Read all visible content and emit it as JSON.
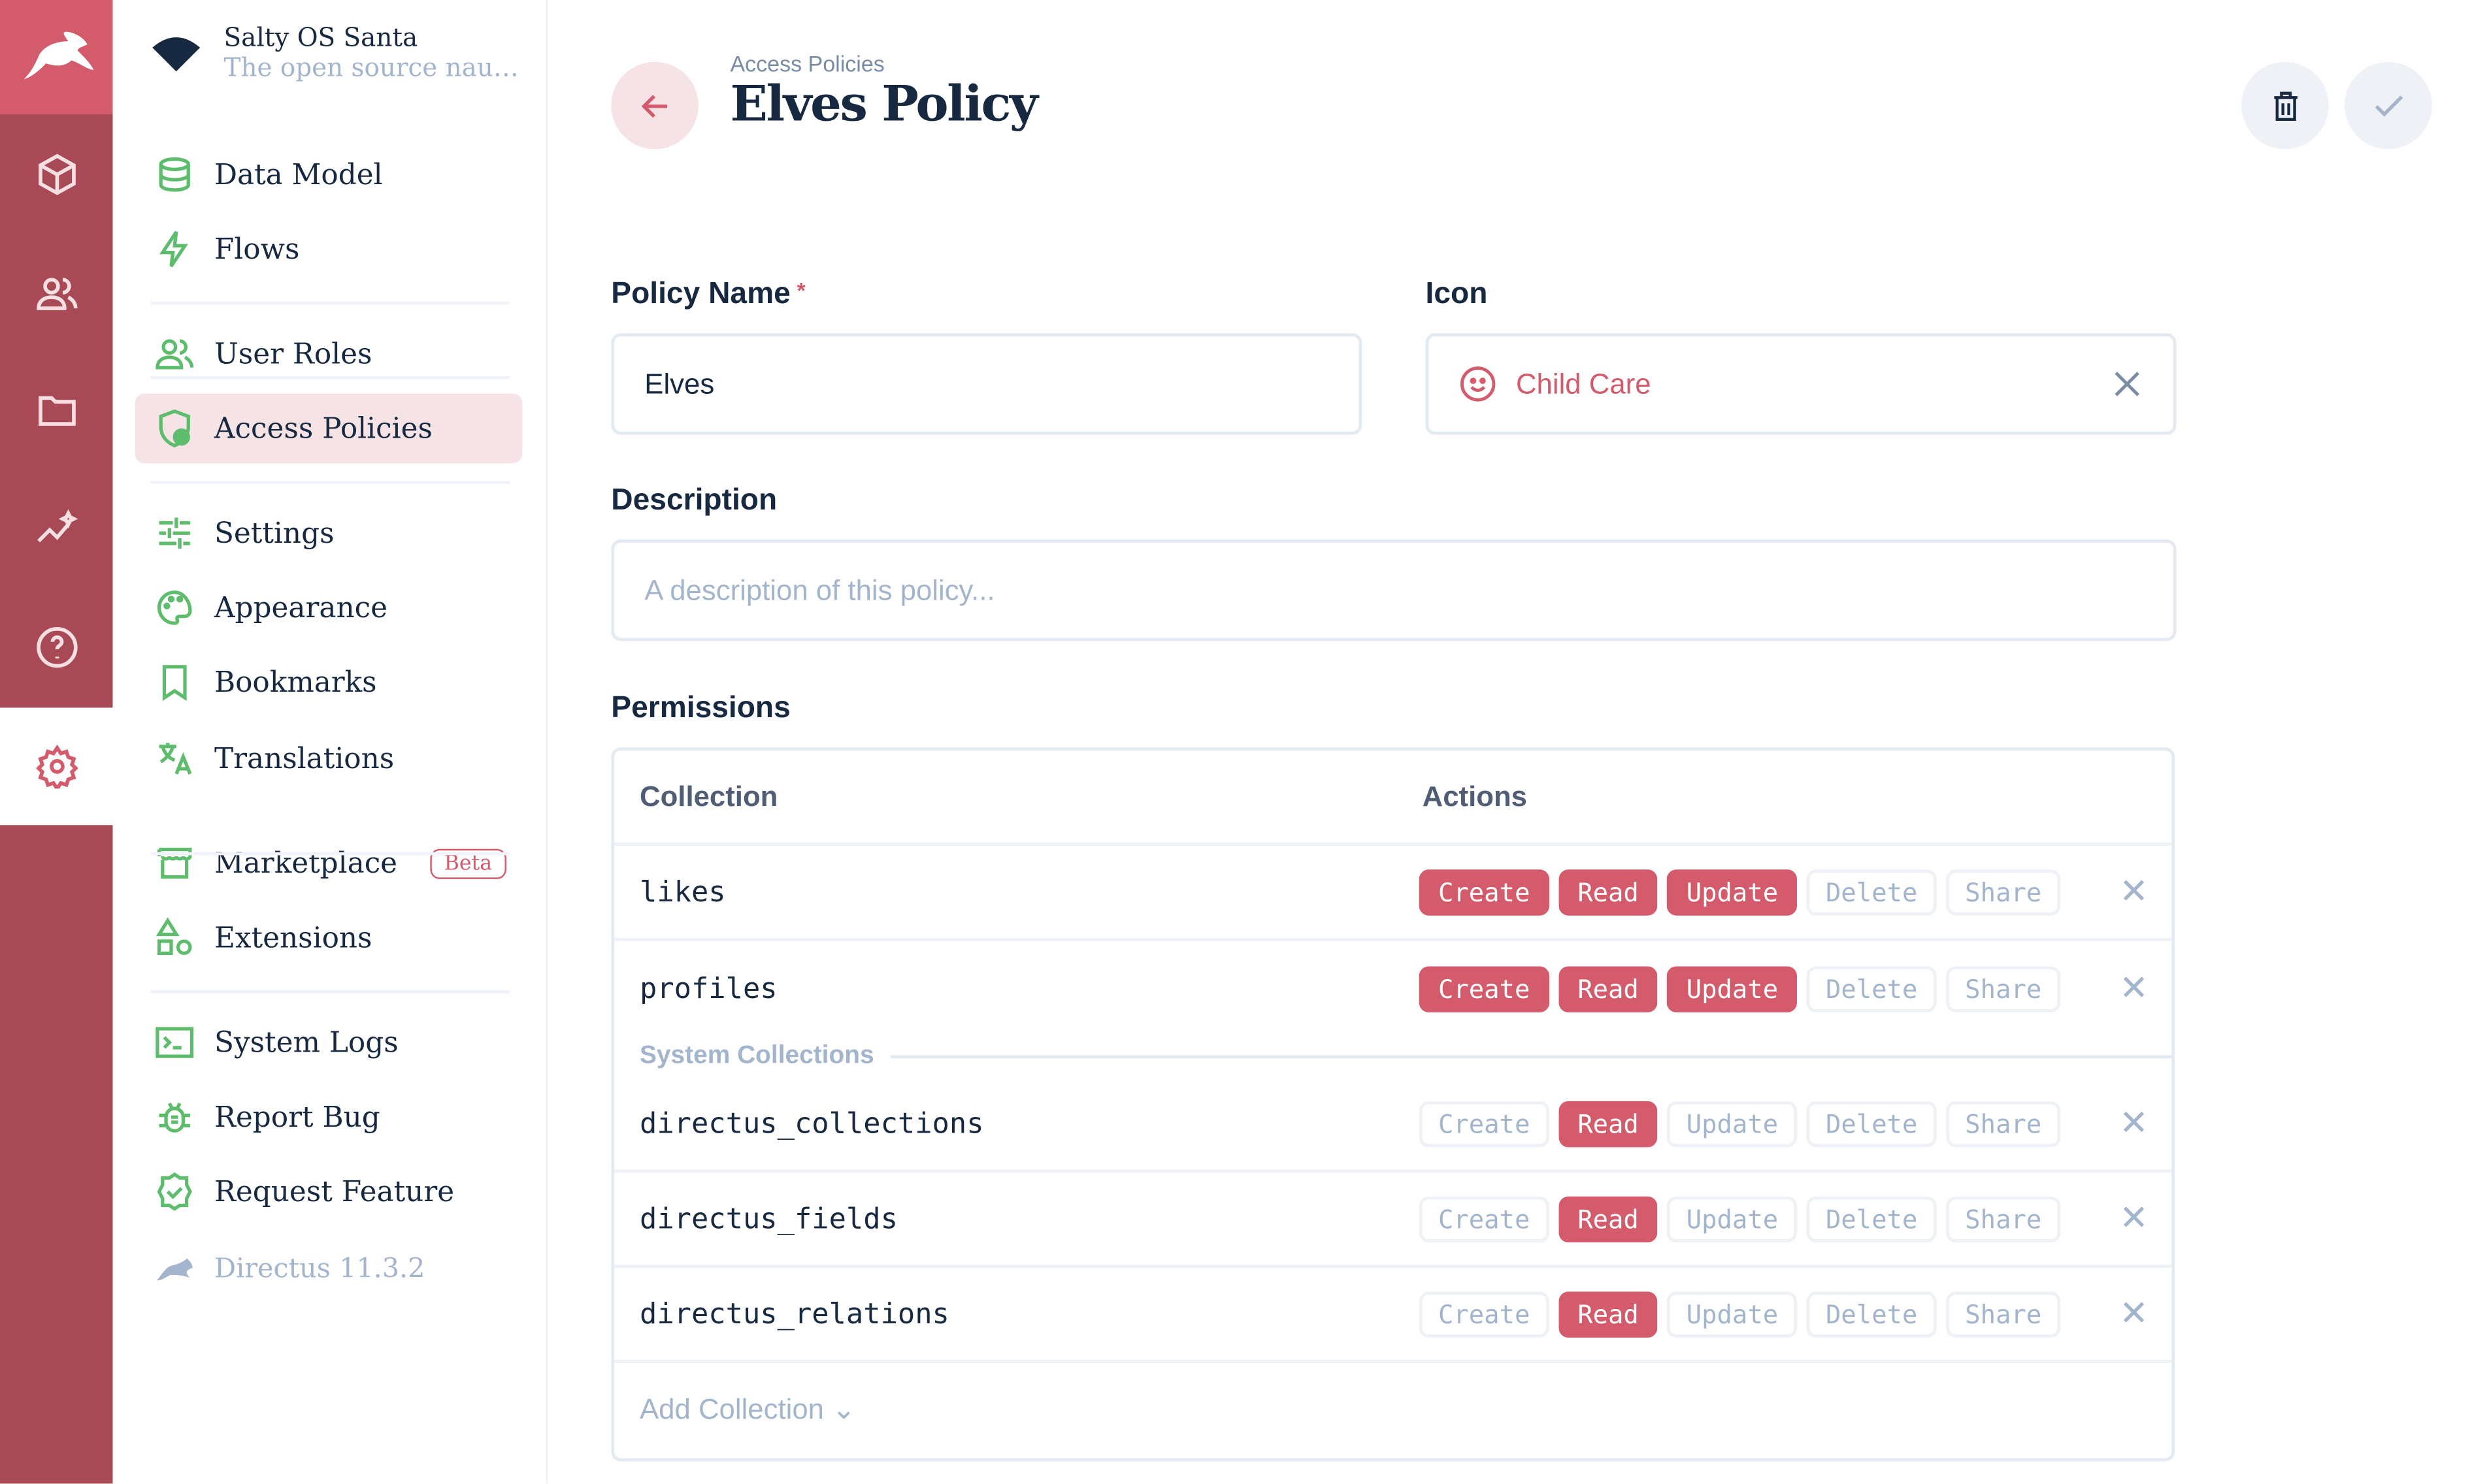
{
  "colors": {
    "accent": "#d35b6b",
    "rail": "#a84a55",
    "sidebar_icon": "#5dbd6c"
  },
  "rail": {
    "items": [
      "logo-rabbit",
      "cube-icon",
      "users-icon",
      "folder-icon",
      "insights-icon",
      "help-icon",
      "settings-icon"
    ],
    "active": "settings-icon"
  },
  "project": {
    "name": "Salty OS Santa",
    "subtitle": "The open source naug..."
  },
  "sidebar": {
    "items": [
      {
        "label": "Data Model",
        "icon": "database-icon"
      },
      {
        "label": "Flows",
        "icon": "bolt-icon"
      },
      {
        "label": "User Roles",
        "icon": "users-icon"
      },
      {
        "label": "Access Policies",
        "icon": "shield-user-icon",
        "active": true
      },
      {
        "label": "Settings",
        "icon": "sliders-icon"
      },
      {
        "label": "Appearance",
        "icon": "palette-icon"
      },
      {
        "label": "Bookmarks",
        "icon": "bookmark-icon"
      },
      {
        "label": "Translations",
        "icon": "translate-icon"
      },
      {
        "label": "Marketplace",
        "icon": "storefront-icon",
        "badge": "Beta"
      },
      {
        "label": "Extensions",
        "icon": "shapes-icon"
      },
      {
        "label": "System Logs",
        "icon": "terminal-icon"
      },
      {
        "label": "Report Bug",
        "icon": "bug-icon"
      },
      {
        "label": "Request Feature",
        "icon": "verified-icon"
      }
    ],
    "version": "Directus 11.3.2"
  },
  "header": {
    "breadcrumb": "Access Policies",
    "title": "Elves Policy"
  },
  "form": {
    "policy_name_label": "Policy Name",
    "required_mark": "*",
    "policy_name_value": "Elves",
    "icon_label": "Icon",
    "icon_value": "Child Care",
    "description_label": "Description",
    "description_placeholder": "A description of this policy...",
    "permissions_label": "Permissions"
  },
  "permissions": {
    "col_collection": "Collection",
    "col_actions": "Actions",
    "actions": [
      "Create",
      "Read",
      "Update",
      "Delete",
      "Share"
    ],
    "rows": [
      {
        "name": "likes",
        "enabled": [
          true,
          true,
          true,
          false,
          false
        ]
      },
      {
        "name": "profiles",
        "enabled": [
          true,
          true,
          true,
          false,
          false
        ]
      },
      {
        "name": "directus_collections",
        "enabled": [
          false,
          true,
          false,
          false,
          false
        ]
      },
      {
        "name": "directus_fields",
        "enabled": [
          false,
          true,
          false,
          false,
          false
        ]
      },
      {
        "name": "directus_relations",
        "enabled": [
          false,
          true,
          false,
          false,
          false
        ]
      }
    ],
    "system_label": "System Collections",
    "add_label": "Add Collection"
  }
}
